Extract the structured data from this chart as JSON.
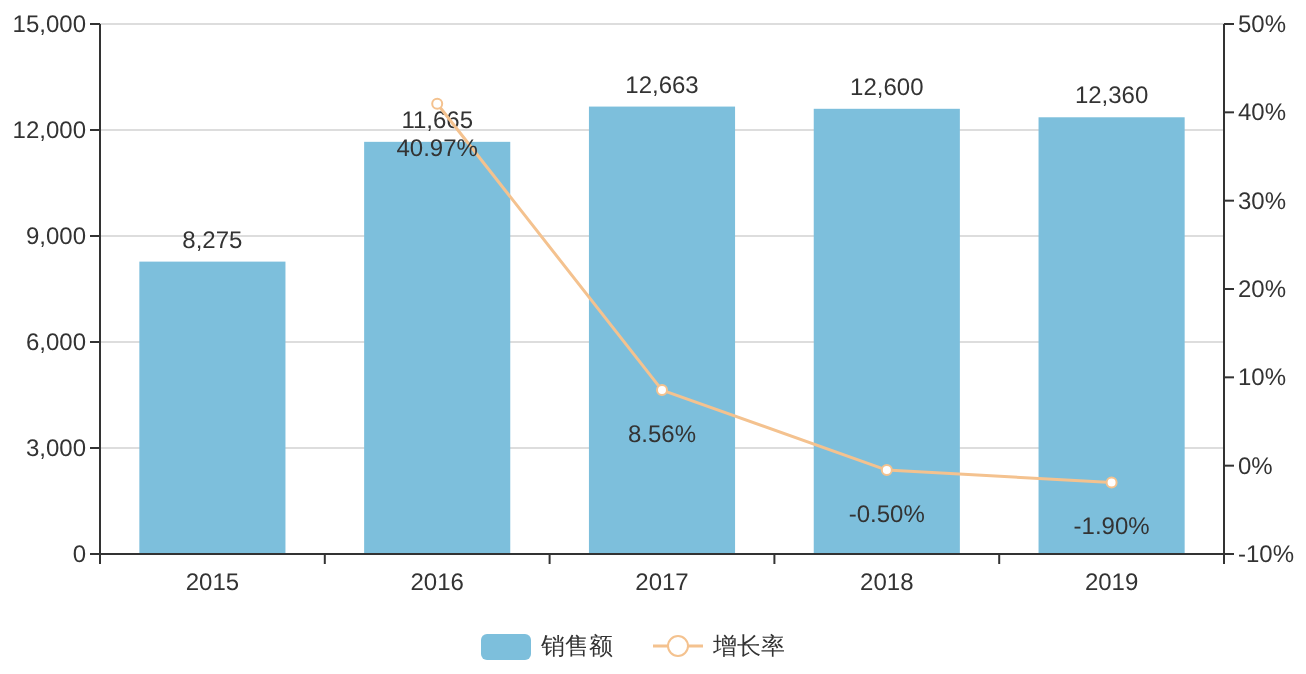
{
  "chart_data": {
    "type": "bar",
    "categories": [
      "2015",
      "2016",
      "2017",
      "2018",
      "2019"
    ],
    "series": [
      {
        "name": "销售额",
        "color": "#7dbfdc",
        "values": [
          8275,
          11665,
          12663,
          12600,
          12360
        ],
        "value_labels": [
          "8,275",
          "11,665",
          "12,663",
          "12,600",
          "12,360"
        ]
      },
      {
        "name": "增长率",
        "type": "line",
        "axis": "y2",
        "color": "#f4c28f",
        "values": [
          null,
          40.97,
          8.56,
          -0.5,
          -1.9
        ],
        "value_labels": [
          null,
          "40.97%",
          "8.56%",
          "-0.50%",
          "-1.90%"
        ],
        "marker": "circle"
      }
    ],
    "ylim": [
      0,
      15000
    ],
    "yticks": [
      {
        "value": 0,
        "label": "0"
      },
      {
        "value": 3000,
        "label": "3,000"
      },
      {
        "value": 6000,
        "label": "6,000"
      },
      {
        "value": 9000,
        "label": "9,000"
      },
      {
        "value": 12000,
        "label": "12,000"
      },
      {
        "value": 15000,
        "label": "15,000"
      }
    ],
    "y2lim": [
      -10,
      50
    ],
    "y2ticks": [
      {
        "value": -10,
        "label": "-10%"
      },
      {
        "value": 0,
        "label": "0%"
      },
      {
        "value": 10,
        "label": "10%"
      },
      {
        "value": 20,
        "label": "20%"
      },
      {
        "value": 30,
        "label": "30%"
      },
      {
        "value": 40,
        "label": "40%"
      },
      {
        "value": 50,
        "label": "50%"
      }
    ],
    "grid": "y",
    "legend": "bottom"
  }
}
